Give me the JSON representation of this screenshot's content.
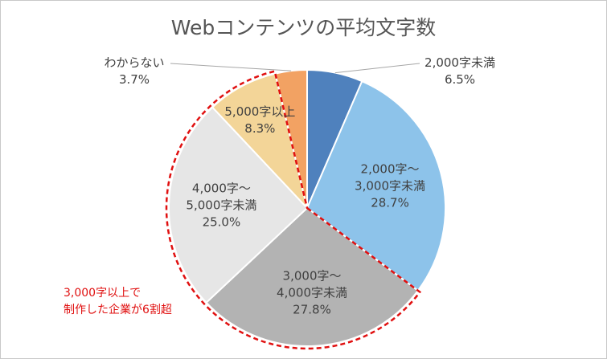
{
  "chart_data": {
    "type": "pie",
    "title": "Webコンテンツの平均文字数",
    "categories": [
      "2,000字未満",
      "2,000字～\n3,000字未満",
      "3,000字～\n4,000字未満",
      "4,000字～\n5,000字未満",
      "5,000字以上",
      "わからない"
    ],
    "values": [
      6.5,
      28.7,
      27.8,
      25.0,
      8.3,
      3.7
    ],
    "value_labels": [
      "6.5%",
      "28.7%",
      "27.8%",
      "25.0%",
      "8.3%",
      "3.7%"
    ],
    "colors": [
      "#4f81bd",
      "#8dc3ea",
      "#b3b3b3",
      "#e6e6e6",
      "#f3d598",
      "#f2a263"
    ],
    "annotation": "3,000字以上で\n制作した企業が6割超"
  }
}
